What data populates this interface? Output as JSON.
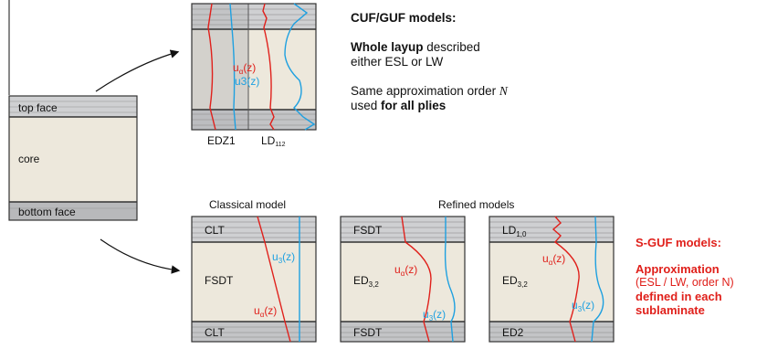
{
  "colors": {
    "core": "#ede8dc",
    "face": "#cfd0d2",
    "face_dark": "#b5b6b8",
    "ply_line": "#9c9c9c",
    "border": "#333333",
    "red_curve": "#e0201b",
    "blue_curve": "#1ea0e0",
    "accent_red": "#e0201b"
  },
  "sandwich": {
    "top_face": "top face",
    "core": "core",
    "bottom_face": "bottom face"
  },
  "cuf_panel": {
    "label_left": "EDZ1",
    "label_right_main": "LD",
    "label_right_sub": "112",
    "u_alpha_main": "u",
    "u_alpha_sub": "α",
    "u_alpha_tail": "(z)",
    "u3": "u3(z)"
  },
  "cuf_text": {
    "title": "CUF/GUF models:",
    "line1_bold": "Whole layup",
    "line1_rest": " described",
    "line2": "either ESL or LW",
    "line3_a": "Same approximation order ",
    "line3_N": "N",
    "line4_a": "used ",
    "line4_bold": "for all plies"
  },
  "headings": {
    "classical": "Classical model",
    "refined": "Refined models"
  },
  "bottom_panels": [
    {
      "top_label": "CLT",
      "mid_label": "FSDT",
      "mid_sub": "",
      "bottom_label": "CLT",
      "top_sub": ""
    },
    {
      "top_label": "FSDT",
      "mid_label": "ED",
      "mid_sub": "3,2",
      "bottom_label": "FSDT",
      "top_sub": ""
    },
    {
      "top_label": "LD",
      "mid_label": "ED",
      "mid_sub": "3,2",
      "bottom_label": "ED2",
      "top_sub": "1,0"
    }
  ],
  "sguf_text": {
    "title": "S-GUF models:",
    "l1": "Approximation",
    "l2": "(ESL / LW, order N)",
    "l3": "defined in each",
    "l4": "sublaminate"
  }
}
